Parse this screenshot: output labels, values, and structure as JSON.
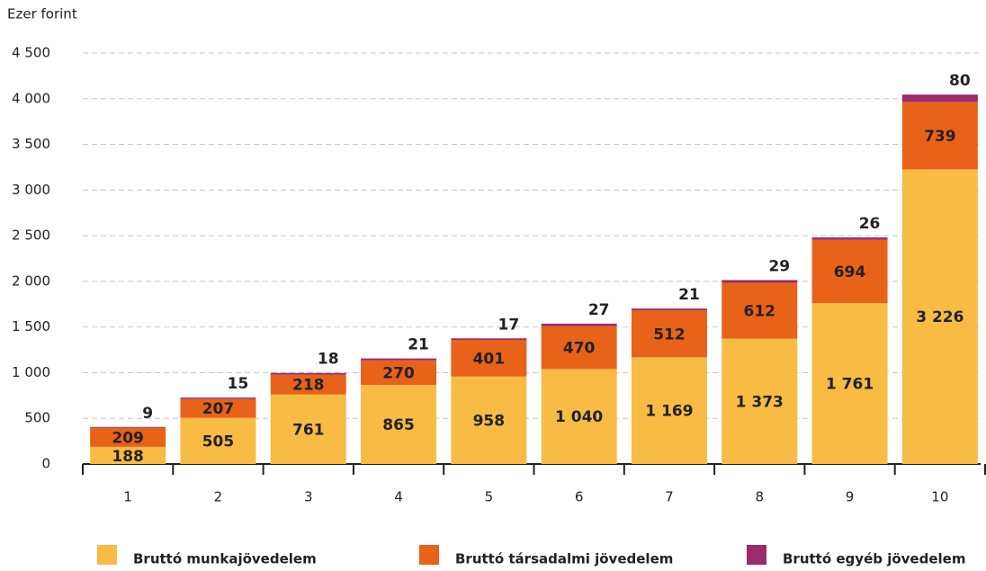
{
  "chart_data": {
    "type": "stacked_bar",
    "y_axis_label": "Ezer forint",
    "categories": [
      "1",
      "2",
      "3",
      "4",
      "5",
      "6",
      "7",
      "8",
      "9",
      "10"
    ],
    "series": [
      {
        "name": "Bruttó munkajövedelem",
        "color": "#f8bb44",
        "values": [
          188,
          505,
          761,
          865,
          958,
          1040,
          1169,
          1373,
          1761,
          3226
        ],
        "value_labels": [
          "188",
          "505",
          "761",
          "865",
          "958",
          "1 040",
          "1 169",
          "1 373",
          "1 761",
          "3 226"
        ]
      },
      {
        "name": "Bruttó társadalmi jövedelem",
        "color": "#e8621a",
        "values": [
          209,
          207,
          218,
          270,
          401,
          470,
          512,
          612,
          694,
          739
        ]
      },
      {
        "name": "Bruttó egyéb jövedelem",
        "color": "#9c2a6e",
        "values": [
          9,
          15,
          18,
          21,
          17,
          27,
          21,
          29,
          26,
          80
        ]
      }
    ],
    "ylim": [
      0,
      4500
    ],
    "yticks": [
      0,
      500,
      {
        "value": 1000,
        "label": "1 000"
      },
      {
        "value": 1500,
        "label": "1 500"
      },
      {
        "value": 2000,
        "label": "2 000"
      },
      {
        "value": 2500,
        "label": "2 500"
      },
      {
        "value": 3000,
        "label": "3 000"
      },
      {
        "value": 3500,
        "label": "3 500"
      },
      {
        "value": 4000,
        "label": "4 000"
      },
      {
        "value": 4500,
        "label": "4 500"
      }
    ],
    "grid": true
  }
}
